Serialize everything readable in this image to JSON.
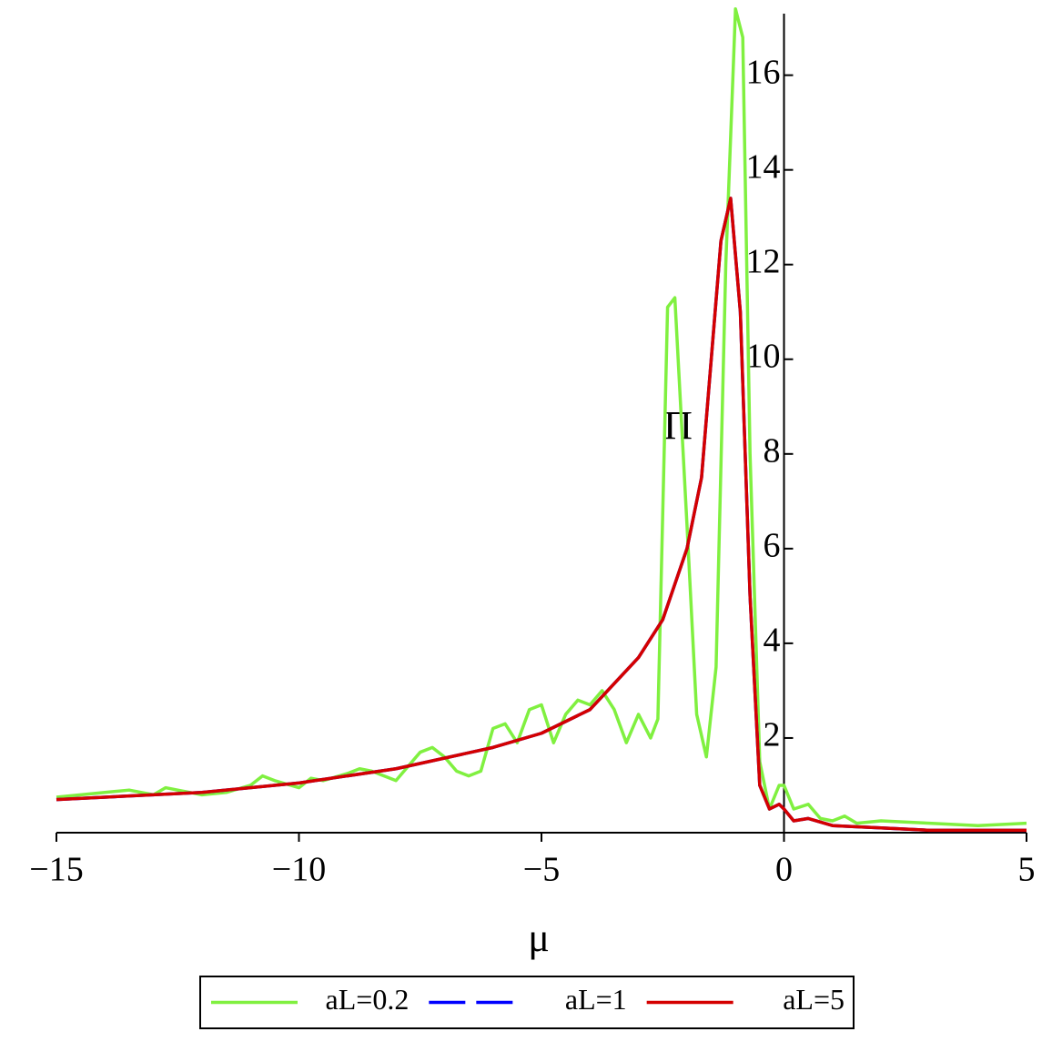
{
  "chart_data": {
    "type": "line",
    "x_label": "μ",
    "y_label": "Π",
    "xlim": [
      -15,
      5
    ],
    "ylim": [
      0,
      17.3
    ],
    "xticks": [
      {
        "value": -15,
        "label": "−15"
      },
      {
        "value": -10,
        "label": "−10"
      },
      {
        "value": -5,
        "label": "−5"
      },
      0,
      5
    ],
    "yticks": [
      2,
      4,
      6,
      8,
      10,
      12,
      14,
      16
    ],
    "legend": "bottom",
    "series": [
      {
        "name": "aL=0.2",
        "color": "#80f040",
        "dash": false,
        "x": [
          -15,
          -14.5,
          -14,
          -13.5,
          -13,
          -12.75,
          -12.5,
          -12,
          -11.5,
          -11,
          -10.75,
          -10.5,
          -10,
          -9.75,
          -9.5,
          -9,
          -8.75,
          -8.5,
          -8,
          -7.75,
          -7.5,
          -7.25,
          -7,
          -6.75,
          -6.5,
          -6.25,
          -6,
          -5.75,
          -5.5,
          -5.25,
          -5,
          -4.75,
          -4.5,
          -4.25,
          -4,
          -3.75,
          -3.5,
          -3.25,
          -3,
          -2.75,
          -2.6,
          -2.4,
          -2.25,
          -2,
          -1.8,
          -1.6,
          -1.4,
          -1.2,
          -1,
          -0.85,
          -0.7,
          -0.5,
          -0.3,
          -0.1,
          0,
          0.2,
          0.5,
          0.75,
          1,
          1.25,
          1.5,
          2,
          3,
          4,
          5
        ],
        "values": [
          0.75,
          0.8,
          0.85,
          0.9,
          0.8,
          0.95,
          0.9,
          0.8,
          0.85,
          1.0,
          1.2,
          1.1,
          0.95,
          1.15,
          1.1,
          1.25,
          1.35,
          1.3,
          1.1,
          1.4,
          1.7,
          1.8,
          1.6,
          1.3,
          1.2,
          1.3,
          2.2,
          2.3,
          1.9,
          2.6,
          2.7,
          1.9,
          2.5,
          2.8,
          2.7,
          3.0,
          2.6,
          1.9,
          2.5,
          2.0,
          2.4,
          11.1,
          11.3,
          6.5,
          2.5,
          1.6,
          3.5,
          12,
          17.4,
          16.8,
          8,
          1.5,
          0.5,
          1.0,
          1.0,
          0.5,
          0.6,
          0.3,
          0.25,
          0.35,
          0.2,
          0.25,
          0.2,
          0.15,
          0.2
        ]
      },
      {
        "name": "aL=1",
        "color": "#0000ff",
        "dash": true,
        "x": [
          -15,
          -12,
          -10,
          -8,
          -6,
          -5,
          -4,
          -3,
          -2.5,
          -2,
          -1.7,
          -1.5,
          -1.3,
          -1.1,
          -0.9,
          -0.7,
          -0.5,
          -0.3,
          -0.1,
          0,
          0.2,
          0.5,
          1,
          2,
          3,
          5
        ],
        "values": [
          0.7,
          0.85,
          1.05,
          1.35,
          1.8,
          2.1,
          2.6,
          3.7,
          4.5,
          6.0,
          7.5,
          10,
          12.5,
          13.4,
          11,
          5,
          1,
          0.5,
          0.6,
          0.5,
          0.25,
          0.3,
          0.15,
          0.1,
          0.05,
          0.05
        ]
      },
      {
        "name": "aL=5",
        "color": "#d40000",
        "dash": false,
        "x": [
          -15,
          -12,
          -10,
          -8,
          -6,
          -5,
          -4,
          -3,
          -2.5,
          -2,
          -1.7,
          -1.5,
          -1.3,
          -1.1,
          -0.9,
          -0.7,
          -0.5,
          -0.3,
          -0.1,
          0,
          0.2,
          0.5,
          1,
          2,
          3,
          5
        ],
        "values": [
          0.7,
          0.85,
          1.05,
          1.35,
          1.8,
          2.1,
          2.6,
          3.7,
          4.5,
          6.0,
          7.5,
          10,
          12.5,
          13.4,
          11,
          5,
          1,
          0.5,
          0.6,
          0.5,
          0.25,
          0.3,
          0.15,
          0.1,
          0.05,
          0.05
        ]
      }
    ]
  }
}
